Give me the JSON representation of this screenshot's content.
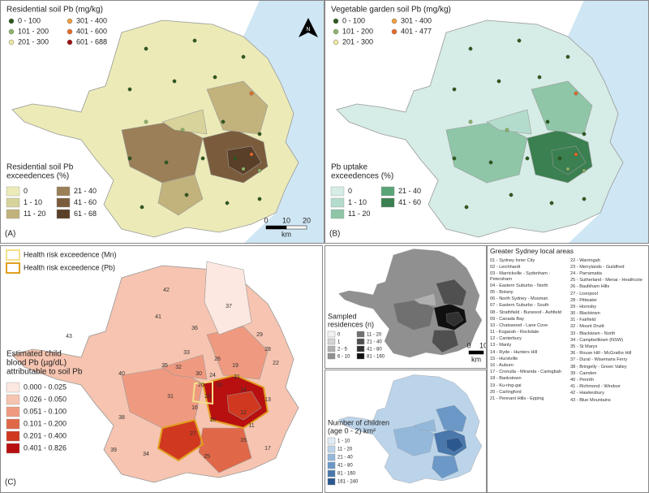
{
  "panel_a": {
    "label": "(A)",
    "north": "N",
    "point_legend": {
      "title": "Residential soil Pb (mg/kg)",
      "items": [
        {
          "label": "0 - 100",
          "color": "#2e5a1c"
        },
        {
          "label": "101 - 200",
          "color": "#8fb56a"
        },
        {
          "label": "201 - 300",
          "color": "#ece9a4"
        },
        {
          "label": "301 - 400",
          "color": "#f0a040"
        },
        {
          "label": "401 - 600",
          "color": "#e86a2a"
        },
        {
          "label": "601 - 688",
          "color": "#a01010"
        }
      ]
    },
    "area_legend": {
      "title": [
        "Residential soil Pb",
        "exceedences (%)"
      ],
      "items": [
        {
          "label": "0",
          "color": "#ecebb8"
        },
        {
          "label": "1 - 10",
          "color": "#d8d39a"
        },
        {
          "label": "11 - 20",
          "color": "#c2b27c"
        },
        {
          "label": "21 - 40",
          "color": "#9a7f58"
        },
        {
          "label": "41 - 60",
          "color": "#7a5c3c"
        },
        {
          "label": "61 - 68",
          "color": "#5a3f28"
        }
      ]
    },
    "scale_bar": {
      "ticks": [
        "0",
        "10",
        "20"
      ],
      "unit": "km"
    }
  },
  "panel_b": {
    "label": "(B)",
    "point_legend": {
      "title": "Vegetable garden soil Pb (mg/kg)",
      "items": [
        {
          "label": "0 - 100",
          "color": "#2e5a1c"
        },
        {
          "label": "101 - 200",
          "color": "#8fb56a"
        },
        {
          "label": "201 - 300",
          "color": "#ece9a4"
        },
        {
          "label": "301 - 400",
          "color": "#f0a040"
        },
        {
          "label": "401 - 477",
          "color": "#e86a2a"
        }
      ]
    },
    "area_legend": {
      "title": [
        "Pb uptake",
        "exceedences (%)"
      ],
      "items": [
        {
          "label": "0",
          "color": "#d6ece6"
        },
        {
          "label": "1 - 10",
          "color": "#b4dccd"
        },
        {
          "label": "11 - 20",
          "color": "#8fc6a8"
        },
        {
          "label": "21 - 40",
          "color": "#5aa578"
        },
        {
          "label": "41 - 60",
          "color": "#3a8050"
        }
      ]
    }
  },
  "panel_c": {
    "label": "(C)",
    "outline_legend": [
      {
        "label": "Health risk exceedence (Mn)",
        "color": "#f4e08a"
      },
      {
        "label": "Health risk exceedence (Pb)",
        "color": "#e0a020"
      }
    ],
    "area_legend": {
      "title": [
        "Estimated child",
        "blood Pb (µg/dL)",
        "attributable to soil Pb"
      ],
      "items": [
        {
          "label": "0.000 - 0.025",
          "color": "#fce8e0"
        },
        {
          "label": "0.026 - 0.050",
          "color": "#f6c4b0"
        },
        {
          "label": "0.051 - 0.100",
          "color": "#ef9a80"
        },
        {
          "label": "0.101 - 0.200",
          "color": "#e06848"
        },
        {
          "label": "0.201 - 0.400",
          "color": "#d03820"
        },
        {
          "label": "0.401 - 0.826",
          "color": "#b81010"
        }
      ]
    },
    "area_numbers": [
      "42",
      "41",
      "36",
      "37",
      "43",
      "29",
      "33",
      "26",
      "28",
      "40",
      "35",
      "32",
      "30",
      "19",
      "22",
      "24",
      "21",
      "10",
      "14",
      "31",
      "23",
      "20",
      "16",
      "13",
      "12",
      "18",
      "38",
      "27",
      "11",
      "39",
      "34",
      "15",
      "25",
      "17"
    ]
  },
  "panel_d": {
    "legend": {
      "title": [
        "Sampled",
        "residences (n)"
      ],
      "items": [
        {
          "label": "0",
          "color": "#f2f2f2"
        },
        {
          "label": "1",
          "color": "#d4d4d4"
        },
        {
          "label": "2 - 5",
          "color": "#b0b0b0"
        },
        {
          "label": "6 - 10",
          "color": "#909090"
        },
        {
          "label": "11 - 20",
          "color": "#707070"
        },
        {
          "label": "21 - 40",
          "color": "#505050"
        },
        {
          "label": "41 - 80",
          "color": "#303030"
        },
        {
          "label": "81 - 160",
          "color": "#101010"
        }
      ]
    },
    "scale_bar": {
      "ticks": [
        "0",
        "10"
      ],
      "unit": "km"
    }
  },
  "panel_e": {
    "legend": {
      "title": [
        "Number of children",
        "(age 0 - 2) km²"
      ],
      "items": [
        {
          "label": "1 - 10",
          "color": "#e0ecf6"
        },
        {
          "label": "11 - 20",
          "color": "#bcd4ea"
        },
        {
          "label": "21 - 40",
          "color": "#94b8da"
        },
        {
          "label": "41 - 80",
          "color": "#6b98c6"
        },
        {
          "label": "81 - 160",
          "color": "#4a78ac"
        },
        {
          "label": "161 - 240",
          "color": "#2c5890"
        }
      ]
    }
  },
  "local_areas": {
    "title": "Greater Sydney local areas",
    "entries": [
      "01 - Sydney Inner City",
      "02 - Leichhardt",
      "03 - Marrickville - Sydenham - Petersham",
      "04 - Eastern Suburbs - North",
      "05 - Botany",
      "06 - North Sydney - Mosman",
      "07 - Eastern Suburbs - South",
      "08 - Strathfield - Burwood - Ashfield",
      "09 - Canada Bay",
      "10 - Chatswood - Lane Cove",
      "11 - Kogarah - Rockdale",
      "12 - Canterbury",
      "13 - Manly",
      "14 - Ryde - Hunters Hill",
      "15 - Hurstville",
      "16 - Auburn",
      "17 - Cronulla - Miranda - Caringbah",
      "18 - Bankstown",
      "19 - Ku-ring-gai",
      "20 - Carlingford",
      "21 - Pennant Hills - Epping",
      "22 - Warringah",
      "23 - Merrylands - Guildford",
      "24 - Parramatta",
      "25 - Sutherland - Menai - Heathcote",
      "26 - Baulkham Hills",
      "27 - Liverpool",
      "28 - Pittwater",
      "29 - Hornsby",
      "30 - Blacktown",
      "31 - Fairfield",
      "32 - Mount Druitt",
      "33 - Blacktown - North",
      "34 - Campbelltown (NSW)",
      "35 - St Marys",
      "36 - Rouse Hill - McGraths Hill",
      "37 - Dural - Wisemans Ferry",
      "38 - Bringelly - Green Valley",
      "39 - Camden",
      "40 - Penrith",
      "41 - Richmond - Windsor",
      "42 - Hawkesbury",
      "43 - Blue Mountains"
    ]
  }
}
